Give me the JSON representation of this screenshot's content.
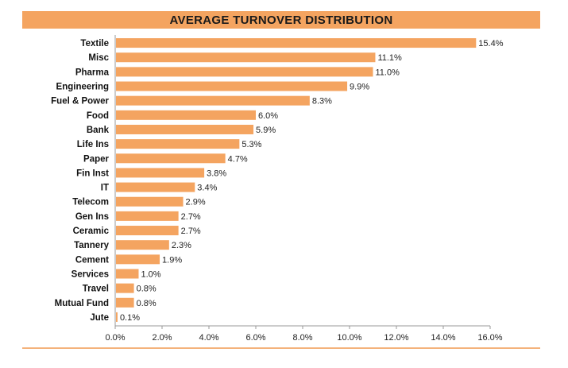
{
  "chart_data": {
    "type": "bar",
    "orientation": "horizontal",
    "title": "AVERAGE TURNOVER DISTRIBUTION",
    "categories": [
      "Textile",
      "Misc",
      "Pharma",
      "Engineering",
      "Fuel & Power",
      "Food",
      "Bank",
      "Life Ins",
      "Paper",
      "Fin Inst",
      "IT",
      "Telecom",
      "Gen Ins",
      "Ceramic",
      "Tannery",
      "Cement",
      "Services",
      "Travel",
      "Mutual Fund",
      "Jute"
    ],
    "values": [
      15.4,
      11.1,
      11.0,
      9.9,
      8.3,
      6.0,
      5.9,
      5.3,
      4.7,
      3.8,
      3.4,
      2.9,
      2.7,
      2.7,
      2.3,
      1.9,
      1.0,
      0.8,
      0.8,
      0.1
    ],
    "value_labels": [
      "15.4%",
      "11.1%",
      "11.0%",
      "9.9%",
      "8.3%",
      "6.0%",
      "5.9%",
      "5.3%",
      "4.7%",
      "3.8%",
      "3.4%",
      "2.9%",
      "2.7%",
      "2.7%",
      "2.3%",
      "1.9%",
      "1.0%",
      "0.8%",
      "0.8%",
      "0.1%"
    ],
    "xlim": [
      0,
      16
    ],
    "x_ticks": [
      0,
      2,
      4,
      6,
      8,
      10,
      12,
      14,
      16
    ],
    "x_tick_labels": [
      "0.0%",
      "2.0%",
      "4.0%",
      "6.0%",
      "8.0%",
      "10.0%",
      "12.0%",
      "14.0%",
      "16.0%"
    ],
    "xlabel": "",
    "ylabel": "",
    "grid": false,
    "legend": "none",
    "colors": {
      "bar": "#f4a460",
      "title_band": "#f4a460",
      "axis": "#999999"
    }
  }
}
